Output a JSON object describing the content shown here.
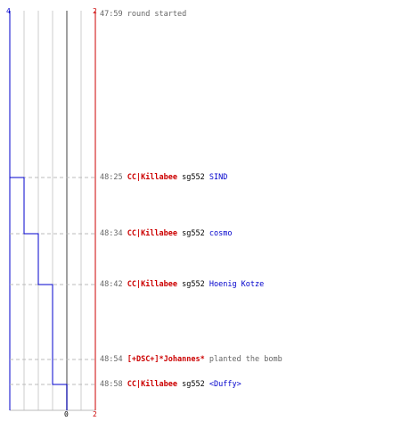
{
  "colors": {
    "blue": "#0000cc",
    "red": "#cc0000",
    "grid": "#cccccc",
    "dash": "#bbbbbb",
    "zero": "#808080"
  },
  "scale": {
    "left_value": "4",
    "zero_value": "0",
    "right_value_top": "2",
    "right_value_bottom": "2"
  },
  "events": [
    {
      "time": "47:59",
      "text": "round started",
      "kind": "info"
    },
    {
      "time": "48:25",
      "killer": "CC|Killabee",
      "weapon": "sg552",
      "victim": "SIND",
      "kind": "kill"
    },
    {
      "time": "48:34",
      "killer": "CC|Killabee",
      "weapon": "sg552",
      "victim": "cosmo",
      "kind": "kill"
    },
    {
      "time": "48:42",
      "killer": "CC|Killabee",
      "weapon": "sg552",
      "victim": "Hoenig Kotze",
      "kind": "kill"
    },
    {
      "time": "48:54",
      "actor": "[+DSC+]*Johannes*",
      "text": "planted the bomb",
      "kind": "bomb"
    },
    {
      "time": "48:58",
      "killer": "CC|Killabee",
      "weapon": "sg552",
      "victim": "<Duffy>",
      "kind": "kill"
    }
  ],
  "chart_data": {
    "type": "line",
    "xlabel": "",
    "ylabel": "",
    "series": [
      {
        "values": [
          4,
          3,
          2,
          1,
          0
        ]
      }
    ],
    "axis_range": [
      4,
      2
    ]
  }
}
